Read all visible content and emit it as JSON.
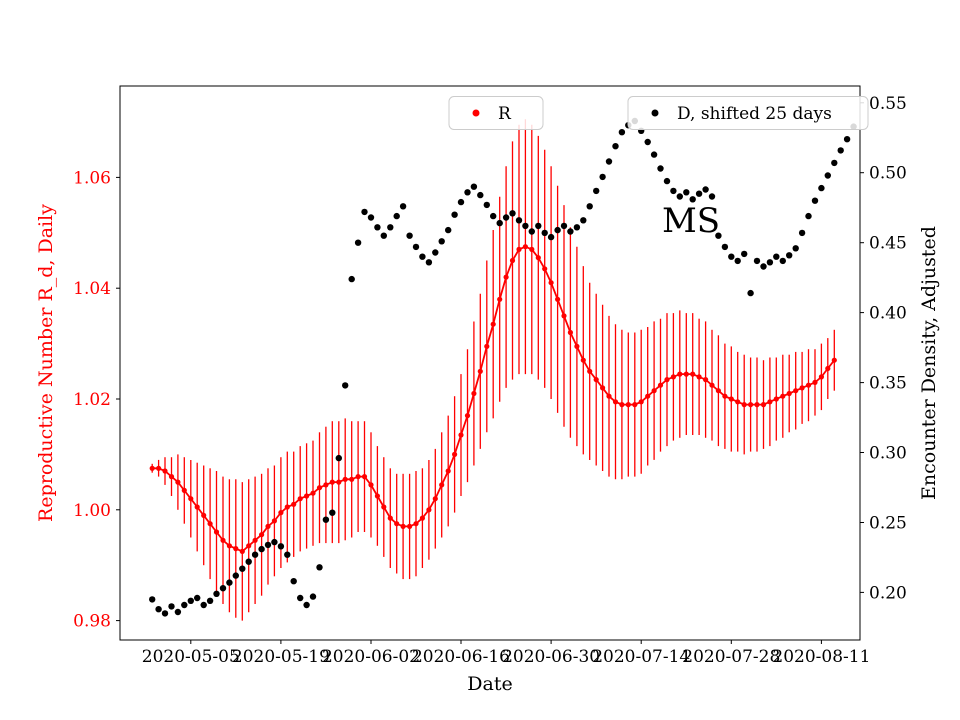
{
  "chart_data": {
    "type": "line",
    "title": "",
    "xlabel": "Date",
    "ylabel_left": "Reproductive Number R_d, Daily",
    "ylabel_right": "Encounter Density, Adjusted",
    "annotation": "MS",
    "axis_colors": {
      "left": "#ff0000",
      "right": "#000000"
    },
    "x_base_date": "2020-04-29",
    "x_ticks": [
      {
        "day": 6,
        "label": "2020-05-05"
      },
      {
        "day": 20,
        "label": "2020-05-19"
      },
      {
        "day": 34,
        "label": "2020-06-02"
      },
      {
        "day": 48,
        "label": "2020-06-16"
      },
      {
        "day": 62,
        "label": "2020-06-30"
      },
      {
        "day": 76,
        "label": "2020-07-14"
      },
      {
        "day": 90,
        "label": "2020-07-28"
      },
      {
        "day": 104,
        "label": "2020-08-11"
      }
    ],
    "xlim_days": [
      -5,
      110
    ],
    "ylim_left": [
      0.9765,
      1.0765
    ],
    "yticks_left": [
      0.98,
      1.0,
      1.02,
      1.04,
      1.06
    ],
    "ylim_right": [
      0.166,
      0.562
    ],
    "yticks_right": [
      0.2,
      0.25,
      0.3,
      0.35,
      0.4,
      0.45,
      0.5,
      0.55
    ],
    "grid": false,
    "legend_position": "top",
    "series": [
      {
        "name": "R",
        "axis": "left",
        "color": "#ff0000",
        "marker": "dot",
        "line": true,
        "start_day": 0,
        "values": [
          1.0075,
          1.0075,
          1.007,
          1.006,
          1.005,
          1.0035,
          1.002,
          1.0005,
          0.999,
          0.9975,
          0.996,
          0.9945,
          0.9935,
          0.993,
          0.9925,
          0.9935,
          0.9945,
          0.9955,
          0.997,
          0.998,
          0.9995,
          1.0005,
          1.001,
          1.002,
          1.0025,
          1.003,
          1.004,
          1.0045,
          1.005,
          1.005,
          1.0055,
          1.0055,
          1.006,
          1.006,
          1.0045,
          1.0025,
          1.0005,
          0.9985,
          0.9975,
          0.997,
          0.997,
          0.9975,
          0.9985,
          1.0,
          1.002,
          1.0045,
          1.007,
          1.01,
          1.0135,
          1.017,
          1.021,
          1.025,
          1.0295,
          1.0335,
          1.038,
          1.042,
          1.045,
          1.047,
          1.0475,
          1.047,
          1.0455,
          1.0435,
          1.041,
          1.038,
          1.035,
          1.032,
          1.0295,
          1.027,
          1.025,
          1.0235,
          1.022,
          1.0205,
          1.0195,
          1.019,
          1.019,
          1.019,
          1.0195,
          1.0205,
          1.0215,
          1.0225,
          1.0235,
          1.024,
          1.0245,
          1.0245,
          1.0245,
          1.024,
          1.0235,
          1.0225,
          1.0215,
          1.0205,
          1.02,
          1.0195,
          1.019,
          1.019,
          1.019,
          1.019,
          1.0195,
          1.02,
          1.0205,
          1.021,
          1.0215,
          1.022,
          1.0225,
          1.023,
          1.024,
          1.0255,
          1.027
        ],
        "err": [
          0.0008,
          0.0015,
          0.0025,
          0.0035,
          0.005,
          0.006,
          0.007,
          0.008,
          0.009,
          0.01,
          0.011,
          0.0115,
          0.012,
          0.0125,
          0.0125,
          0.012,
          0.0115,
          0.011,
          0.0105,
          0.01,
          0.01,
          0.01,
          0.0095,
          0.0095,
          0.0095,
          0.0095,
          0.01,
          0.0105,
          0.011,
          0.011,
          0.011,
          0.0105,
          0.01,
          0.01,
          0.0095,
          0.009,
          0.009,
          0.009,
          0.009,
          0.0095,
          0.0095,
          0.0095,
          0.009,
          0.009,
          0.009,
          0.0095,
          0.01,
          0.0105,
          0.011,
          0.012,
          0.013,
          0.014,
          0.0155,
          0.017,
          0.0185,
          0.02,
          0.0215,
          0.0225,
          0.023,
          0.0225,
          0.022,
          0.0215,
          0.021,
          0.0205,
          0.02,
          0.019,
          0.018,
          0.017,
          0.016,
          0.0155,
          0.015,
          0.0145,
          0.014,
          0.0135,
          0.013,
          0.013,
          0.013,
          0.0125,
          0.0125,
          0.012,
          0.012,
          0.0115,
          0.0115,
          0.011,
          0.011,
          0.0105,
          0.0105,
          0.01,
          0.01,
          0.0095,
          0.0095,
          0.009,
          0.009,
          0.0085,
          0.0085,
          0.008,
          0.008,
          0.0075,
          0.0075,
          0.007,
          0.007,
          0.0065,
          0.0065,
          0.006,
          0.006,
          0.0055,
          0.0055
        ]
      },
      {
        "name": "D, shifted 25 days",
        "axis": "right",
        "color": "#000000",
        "marker": "dot",
        "line": false,
        "start_day": 0,
        "values": [
          0.195,
          0.188,
          0.185,
          0.19,
          0.186,
          0.191,
          0.194,
          0.196,
          0.191,
          0.194,
          0.199,
          0.203,
          0.207,
          0.212,
          0.217,
          0.222,
          0.227,
          0.231,
          0.234,
          0.236,
          0.233,
          0.227,
          0.208,
          0.196,
          0.191,
          0.197,
          0.218,
          0.252,
          0.257,
          0.296,
          0.348,
          0.424,
          0.45,
          0.472,
          0.468,
          0.461,
          0.455,
          0.461,
          0.469,
          0.476,
          0.455,
          0.447,
          0.44,
          0.436,
          0.443,
          0.451,
          0.459,
          0.47,
          0.479,
          0.486,
          0.49,
          0.484,
          0.477,
          0.469,
          0.464,
          0.468,
          0.471,
          0.466,
          0.462,
          0.458,
          0.462,
          0.457,
          0.454,
          0.459,
          0.462,
          0.458,
          0.461,
          0.466,
          0.476,
          0.487,
          0.497,
          0.508,
          0.519,
          0.529,
          0.534,
          0.537,
          0.53,
          0.522,
          0.513,
          0.503,
          0.494,
          0.487,
          0.483,
          0.486,
          0.481,
          0.485,
          0.488,
          0.483,
          0.455,
          0.447,
          0.44,
          0.437,
          0.442,
          0.414,
          0.437,
          0.433,
          0.436,
          0.44,
          0.437,
          0.441,
          0.446,
          0.457,
          0.469,
          0.48,
          0.489,
          0.498,
          0.507,
          0.516,
          0.524,
          0.533
        ]
      }
    ]
  }
}
